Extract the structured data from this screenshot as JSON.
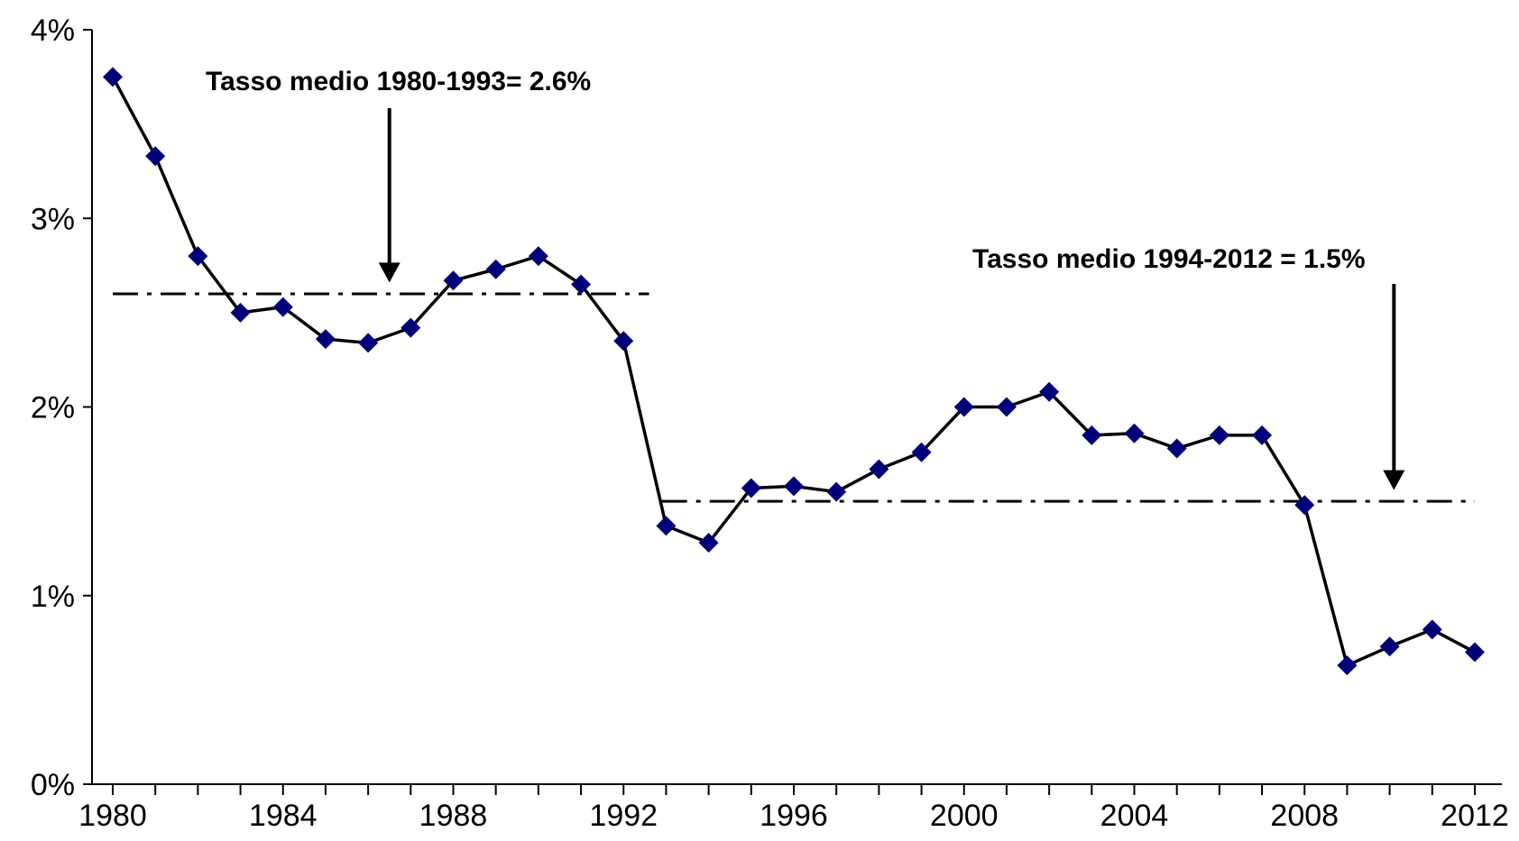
{
  "chart_data": {
    "type": "line",
    "title": "",
    "xlabel": "",
    "ylabel": "",
    "xlim": [
      1980,
      2012
    ],
    "ylim": [
      0,
      4
    ],
    "y_unit": "%",
    "grid": false,
    "legend": "none",
    "x_ticks": [
      1980,
      1984,
      1988,
      1992,
      1996,
      2000,
      2004,
      2008,
      2012
    ],
    "x_tick_labels": [
      "1980",
      "1984",
      "1988",
      "1992",
      "1996",
      "2000",
      "2004",
      "2008",
      "2012"
    ],
    "y_ticks": [
      0,
      1,
      2,
      3,
      4
    ],
    "y_tick_labels": [
      "0%",
      "1%",
      "2%",
      "3%",
      "4%"
    ],
    "series": [
      {
        "color": "#000000",
        "marker": "diamond",
        "marker_color": "#00007a",
        "x": [
          1980,
          1981,
          1982,
          1983,
          1984,
          1985,
          1986,
          1987,
          1988,
          1989,
          1990,
          1991,
          1992,
          1993,
          1994,
          1995,
          1996,
          1997,
          1998,
          1999,
          2000,
          2001,
          2002,
          2003,
          2004,
          2005,
          2006,
          2007,
          2008,
          2009,
          2010,
          2011,
          2012
        ],
        "values": [
          3.75,
          3.33,
          2.8,
          2.5,
          2.53,
          2.36,
          2.34,
          2.42,
          2.67,
          2.73,
          2.8,
          2.65,
          2.35,
          1.37,
          1.28,
          1.57,
          1.58,
          1.55,
          1.67,
          1.76,
          2.0,
          2.0,
          2.08,
          1.85,
          1.86,
          1.78,
          1.85,
          1.85,
          1.48,
          0.63,
          0.73,
          0.82,
          0.7
        ]
      }
    ],
    "reference_lines": [
      {
        "value": 2.6,
        "x_start": 1980,
        "x_end": 1992.6,
        "style": "dash-dot"
      },
      {
        "value": 1.5,
        "x_start": 1992.9,
        "x_end": 2012,
        "style": "dash-dot"
      }
    ],
    "annotations": [
      {
        "text": "Tasso medio 1980-1993=  2.6%",
        "arrow_x": 1986.5,
        "arrow_to": 2.66
      },
      {
        "text": "Tasso medio 1994-2012  = 1.5%",
        "arrow_x": 2010.1,
        "arrow_to": 1.56
      }
    ]
  }
}
